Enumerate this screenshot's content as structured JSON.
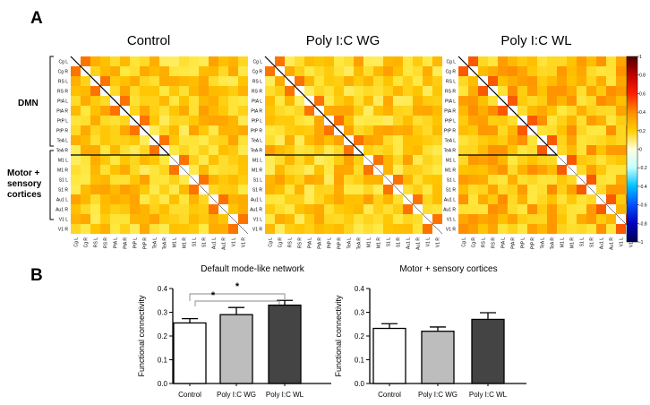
{
  "panel_a": {
    "letter": "A",
    "titles": [
      "Control",
      "Poly I:C WG",
      "Poly I:C WL"
    ],
    "regions": [
      "Cg L",
      "Cg R",
      "RS L",
      "RS R",
      "PtA L",
      "PtA R",
      "PtP L",
      "PtP R",
      "TeA L",
      "TeA R",
      "M1 L",
      "M1 R",
      "S1 L",
      "S1 R",
      "Au1 L",
      "Au1 R",
      "V1 L",
      "V1 R"
    ],
    "group_labels": {
      "dmn": "DMN",
      "motor": [
        "Motor +",
        "sensory",
        "cortices"
      ]
    },
    "colorbar": {
      "ticks": [
        "1",
        "0.8",
        "0.6",
        "0.4",
        "0.2",
        "0",
        "-0.2",
        "-0.4",
        "-0.6",
        "-0.8",
        "-1"
      ],
      "colors": [
        "#4a0000",
        "#c00000",
        "#ff2000",
        "#ff8c00",
        "#ffd000",
        "#ffffe0",
        "#c0ffff",
        "#00c0ff",
        "#0050ff",
        "#0000c0",
        "#000050"
      ]
    }
  },
  "panel_b": {
    "letter": "B",
    "significance": [
      "*",
      "*"
    ]
  },
  "chart_data": [
    {
      "type": "heatmap",
      "title": "Control",
      "rows": [
        "Cg L",
        "Cg R",
        "RS L",
        "RS R",
        "PtA L",
        "PtA R",
        "PtP L",
        "PtP R",
        "TeA L",
        "TeA R",
        "M1 L",
        "M1 R",
        "S1 L",
        "S1 R",
        "Au1 L",
        "Au1 R",
        "V1 L",
        "V1 R"
      ],
      "cols": [
        "Cg L",
        "Cg R",
        "RS L",
        "RS R",
        "PtA L",
        "PtA R",
        "PtP L",
        "PtP R",
        "TeA L",
        "TeA R",
        "M1 L",
        "M1 R",
        "S1 L",
        "S1 R",
        "Au1 L",
        "Au1 R",
        "V1 L",
        "V1 R"
      ],
      "value_range": [
        -1,
        1
      ],
      "diagonal_value": 0,
      "off_diagonal_approx_range": [
        0.2,
        0.5
      ]
    },
    {
      "type": "heatmap",
      "title": "Poly I:C WG",
      "rows": [
        "Cg L",
        "Cg R",
        "RS L",
        "RS R",
        "PtA L",
        "PtA R",
        "PtP L",
        "PtP R",
        "TeA L",
        "TeA R",
        "M1 L",
        "M1 R",
        "S1 L",
        "S1 R",
        "Au1 L",
        "Au1 R",
        "V1 L",
        "V1 R"
      ],
      "cols": [
        "Cg L",
        "Cg R",
        "RS L",
        "RS R",
        "PtA L",
        "PtA R",
        "PtP L",
        "PtP R",
        "TeA L",
        "TeA R",
        "M1 L",
        "M1 R",
        "S1 L",
        "S1 R",
        "Au1 L",
        "Au1 R",
        "V1 L",
        "V1 R"
      ],
      "value_range": [
        -1,
        1
      ],
      "diagonal_value": 0,
      "off_diagonal_approx_range": [
        0.2,
        0.5
      ]
    },
    {
      "type": "heatmap",
      "title": "Poly I:C WL",
      "rows": [
        "Cg L",
        "Cg R",
        "RS L",
        "RS R",
        "PtA L",
        "PtA R",
        "PtP L",
        "PtP R",
        "TeA L",
        "TeA R",
        "M1 L",
        "M1 R",
        "S1 L",
        "S1 R",
        "Au1 L",
        "Au1 R",
        "V1 L",
        "V1 R"
      ],
      "cols": [
        "Cg L",
        "Cg R",
        "RS L",
        "RS R",
        "PtA L",
        "PtA R",
        "PtP L",
        "PtP R",
        "TeA L",
        "TeA R",
        "M1 L",
        "M1 R",
        "S1 L",
        "S1 R",
        "Au1 L",
        "Au1 R",
        "V1 L",
        "V1 R"
      ],
      "value_range": [
        -1,
        1
      ],
      "diagonal_value": 0,
      "off_diagonal_approx_range": [
        0.25,
        0.55
      ]
    },
    {
      "type": "bar",
      "title": "Default mode-like network",
      "ylabel": "Functional connectivity",
      "xlabel": "",
      "categories": [
        "Control",
        "Poly I:C WG",
        "Poly I:C WL"
      ],
      "values": [
        0.255,
        0.29,
        0.33
      ],
      "errors": [
        0.018,
        0.03,
        0.02
      ],
      "bar_colors": [
        "#ffffff",
        "#bdbdbd",
        "#444444"
      ],
      "ylim": [
        0,
        0.4
      ],
      "yticks": [
        "0.0",
        "0.1",
        "0.2",
        "0.3",
        "0.4"
      ]
    },
    {
      "type": "bar",
      "title": "Motor + sensory cortices",
      "ylabel": "Functional connectivity",
      "xlabel": "",
      "categories": [
        "Control",
        "Poly I:C WG",
        "Poly I:C WL"
      ],
      "values": [
        0.232,
        0.22,
        0.27
      ],
      "errors": [
        0.02,
        0.018,
        0.028
      ],
      "bar_colors": [
        "#ffffff",
        "#bdbdbd",
        "#444444"
      ],
      "ylim": [
        0,
        0.4
      ],
      "yticks": [
        "0.0",
        "0.1",
        "0.2",
        "0.3",
        "0.4"
      ]
    }
  ]
}
